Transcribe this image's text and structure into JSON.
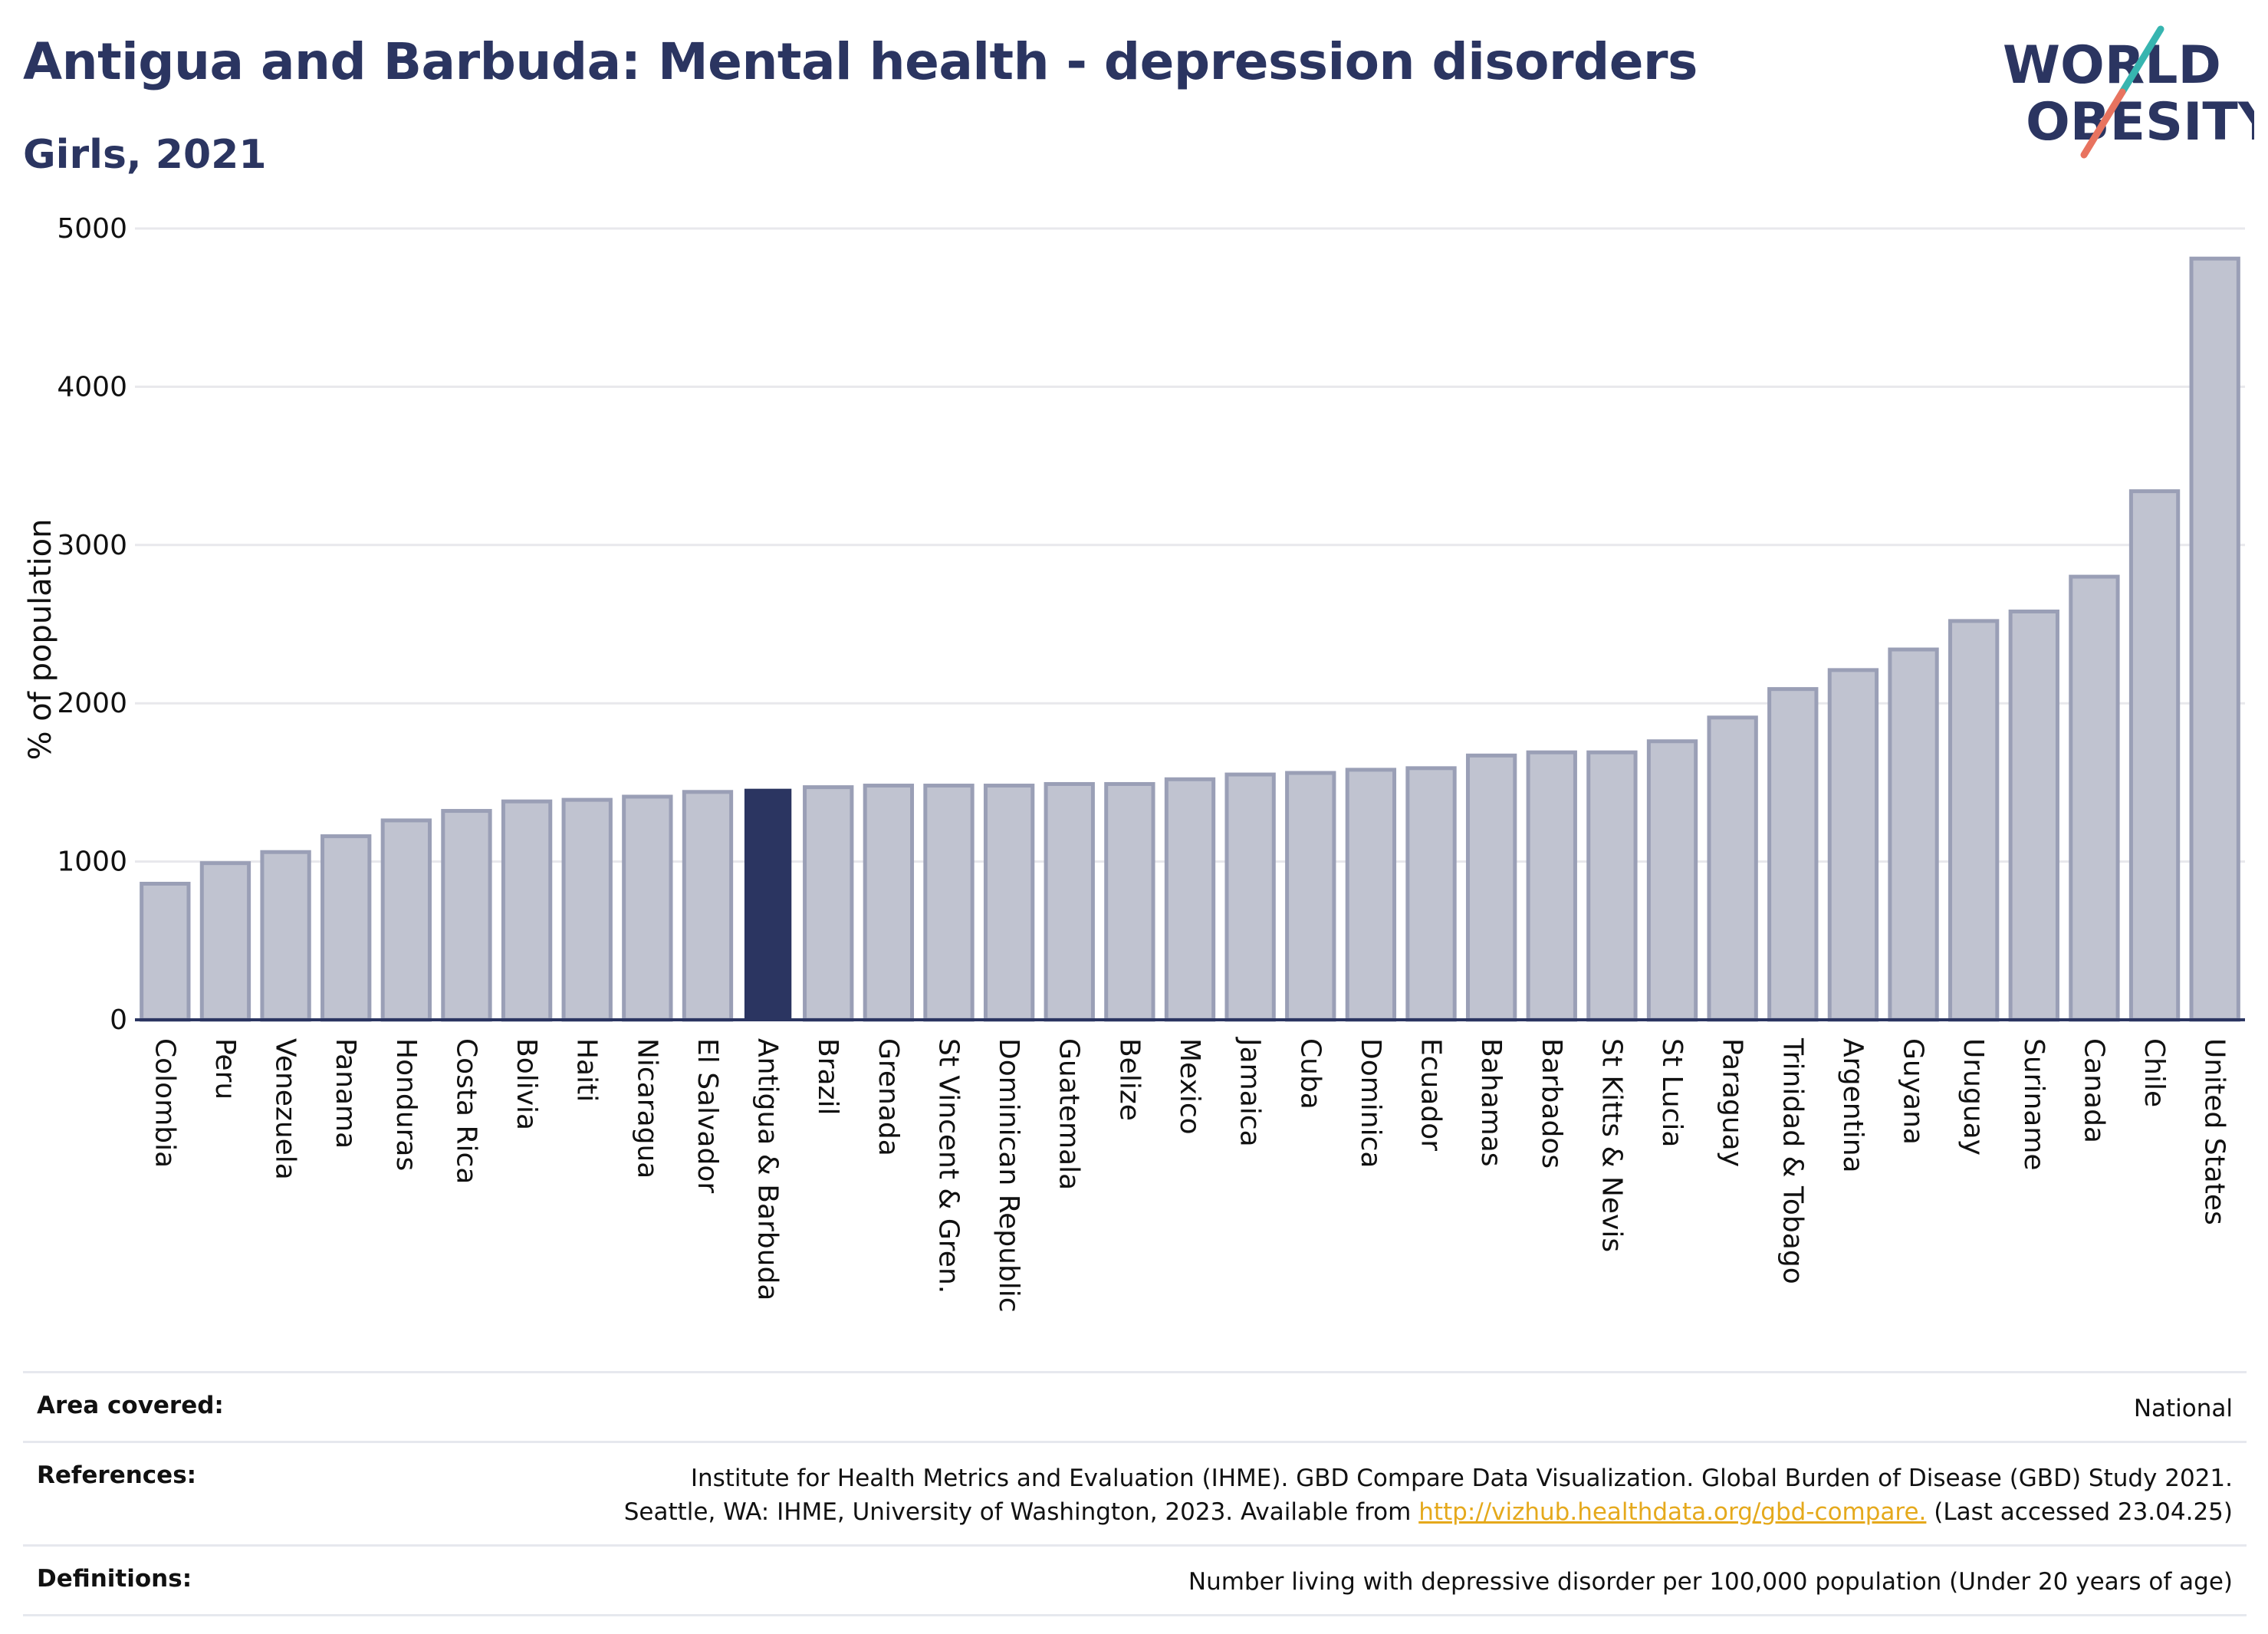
{
  "header": {
    "title": "Antigua and Barbuda: Mental health - depression disorders",
    "subtitle": "Girls, 2021"
  },
  "logo": {
    "line1": "WORLD",
    "line2": "OBESITY"
  },
  "colors": {
    "highlight": "#2b3561",
    "bar_fill": "#c0c3d0",
    "bar_stroke": "#9a9fb6",
    "grid": "#e8e8ec",
    "link": "#e5a91c",
    "logo_teal": "#37b5b0",
    "logo_coral": "#e8735f"
  },
  "chart_data": {
    "type": "bar",
    "ylabel": "% of population",
    "ylim": [
      0,
      5000
    ],
    "yticks": [
      0,
      1000,
      2000,
      3000,
      4000,
      5000
    ],
    "grid": true,
    "highlight": "Antigua & Barbuda",
    "categories": [
      "Colombia",
      "Peru",
      "Venezuela",
      "Panama",
      "Honduras",
      "Costa Rica",
      "Bolivia",
      "Haiti",
      "Nicaragua",
      "El Salvador",
      "Antigua & Barbuda",
      "Brazil",
      "Grenada",
      "St Vincent & Gren.",
      "Dominican Republic",
      "Guatemala",
      "Belize",
      "Mexico",
      "Jamaica",
      "Cuba",
      "Dominica",
      "Ecuador",
      "Bahamas",
      "Barbados",
      "St Kitts & Nevis",
      "St Lucia",
      "Paraguay",
      "Trinidad & Tobago",
      "Argentina",
      "Guyana",
      "Uruguay",
      "Suriname",
      "Canada",
      "Chile",
      "United States"
    ],
    "values": [
      860,
      990,
      1060,
      1160,
      1260,
      1320,
      1380,
      1390,
      1410,
      1440,
      1460,
      1470,
      1480,
      1480,
      1480,
      1490,
      1490,
      1520,
      1550,
      1560,
      1580,
      1590,
      1670,
      1690,
      1690,
      1760,
      1910,
      2090,
      2210,
      2340,
      2520,
      2580,
      2800,
      3340,
      4810
    ]
  },
  "footer": {
    "area_label": "Area covered:",
    "area_value": "National",
    "references_label": "References:",
    "references_line1": "Institute for Health Metrics and Evaluation (IHME). GBD Compare Data Visualization. Global Burden of Disease (GBD) Study 2021.",
    "references_line2_pre": "Seattle, WA: IHME, University of Washington, 2023. Available from ",
    "references_link": "http://vizhub.healthdata.org/gbd-compare.",
    "references_line2_post": " (Last accessed 23.04.25)",
    "definitions_label": "Definitions:",
    "definitions_value": "Number living with depressive disorder per 100,000 population (Under 20 years of age)"
  }
}
